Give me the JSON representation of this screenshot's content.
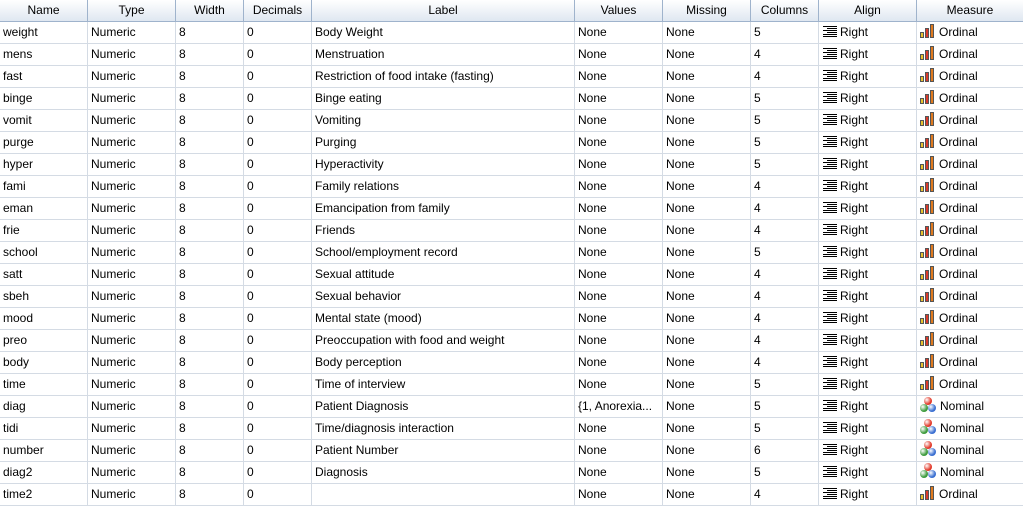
{
  "headers": {
    "name": "Name",
    "type": "Type",
    "width": "Width",
    "decimals": "Decimals",
    "label": "Label",
    "values": "Values",
    "missing": "Missing",
    "columns": "Columns",
    "align": "Align",
    "measure": "Measure"
  },
  "icons": {
    "align": "align-right-icon",
    "ordinal": "ordinal-bars-icon",
    "nominal": "nominal-circles-icon"
  },
  "colors": {
    "header_border": "#9fb3cc",
    "ordinal_bars": [
      "#e8c12c",
      "#d93a2b",
      "#e07a1f"
    ],
    "nominal_circles": [
      "#e23a2a",
      "#3c9a3c",
      "#3a6fd1"
    ]
  },
  "rows": [
    {
      "name": "weight",
      "type": "Numeric",
      "width": "8",
      "decimals": "0",
      "label": "Body Weight",
      "values": "None",
      "missing": "None",
      "columns": "5",
      "align": "Right",
      "measure": "Ordinal"
    },
    {
      "name": "mens",
      "type": "Numeric",
      "width": "8",
      "decimals": "0",
      "label": "Menstruation",
      "values": "None",
      "missing": "None",
      "columns": "4",
      "align": "Right",
      "measure": "Ordinal"
    },
    {
      "name": "fast",
      "type": "Numeric",
      "width": "8",
      "decimals": "0",
      "label": "Restriction of food intake (fasting)",
      "values": "None",
      "missing": "None",
      "columns": "4",
      "align": "Right",
      "measure": "Ordinal"
    },
    {
      "name": "binge",
      "type": "Numeric",
      "width": "8",
      "decimals": "0",
      "label": "Binge eating",
      "values": "None",
      "missing": "None",
      "columns": "5",
      "align": "Right",
      "measure": "Ordinal"
    },
    {
      "name": "vomit",
      "type": "Numeric",
      "width": "8",
      "decimals": "0",
      "label": "Vomiting",
      "values": "None",
      "missing": "None",
      "columns": "5",
      "align": "Right",
      "measure": "Ordinal"
    },
    {
      "name": "purge",
      "type": "Numeric",
      "width": "8",
      "decimals": "0",
      "label": "Purging",
      "values": "None",
      "missing": "None",
      "columns": "5",
      "align": "Right",
      "measure": "Ordinal"
    },
    {
      "name": "hyper",
      "type": "Numeric",
      "width": "8",
      "decimals": "0",
      "label": "Hyperactivity",
      "values": "None",
      "missing": "None",
      "columns": "5",
      "align": "Right",
      "measure": "Ordinal"
    },
    {
      "name": "fami",
      "type": "Numeric",
      "width": "8",
      "decimals": "0",
      "label": "Family relations",
      "values": "None",
      "missing": "None",
      "columns": "4",
      "align": "Right",
      "measure": "Ordinal"
    },
    {
      "name": "eman",
      "type": "Numeric",
      "width": "8",
      "decimals": "0",
      "label": "Emancipation from family",
      "values": "None",
      "missing": "None",
      "columns": "4",
      "align": "Right",
      "measure": "Ordinal"
    },
    {
      "name": "frie",
      "type": "Numeric",
      "width": "8",
      "decimals": "0",
      "label": "Friends",
      "values": "None",
      "missing": "None",
      "columns": "4",
      "align": "Right",
      "measure": "Ordinal"
    },
    {
      "name": "school",
      "type": "Numeric",
      "width": "8",
      "decimals": "0",
      "label": "School/employment record",
      "values": "None",
      "missing": "None",
      "columns": "5",
      "align": "Right",
      "measure": "Ordinal"
    },
    {
      "name": "satt",
      "type": "Numeric",
      "width": "8",
      "decimals": "0",
      "label": "Sexual attitude",
      "values": "None",
      "missing": "None",
      "columns": "4",
      "align": "Right",
      "measure": "Ordinal"
    },
    {
      "name": "sbeh",
      "type": "Numeric",
      "width": "8",
      "decimals": "0",
      "label": "Sexual behavior",
      "values": "None",
      "missing": "None",
      "columns": "4",
      "align": "Right",
      "measure": "Ordinal"
    },
    {
      "name": "mood",
      "type": "Numeric",
      "width": "8",
      "decimals": "0",
      "label": "Mental state (mood)",
      "values": "None",
      "missing": "None",
      "columns": "4",
      "align": "Right",
      "measure": "Ordinal"
    },
    {
      "name": "preo",
      "type": "Numeric",
      "width": "8",
      "decimals": "0",
      "label": "Preoccupation with food and weight",
      "values": "None",
      "missing": "None",
      "columns": "4",
      "align": "Right",
      "measure": "Ordinal"
    },
    {
      "name": "body",
      "type": "Numeric",
      "width": "8",
      "decimals": "0",
      "label": "Body perception",
      "values": "None",
      "missing": "None",
      "columns": "4",
      "align": "Right",
      "measure": "Ordinal"
    },
    {
      "name": "time",
      "type": "Numeric",
      "width": "8",
      "decimals": "0",
      "label": "Time of interview",
      "values": "None",
      "missing": "None",
      "columns": "5",
      "align": "Right",
      "measure": "Ordinal"
    },
    {
      "name": "diag",
      "type": "Numeric",
      "width": "8",
      "decimals": "0",
      "label": "Patient Diagnosis",
      "values": "{1, Anorexia...",
      "missing": "None",
      "columns": "5",
      "align": "Right",
      "measure": "Nominal"
    },
    {
      "name": "tidi",
      "type": "Numeric",
      "width": "8",
      "decimals": "0",
      "label": "Time/diagnosis interaction",
      "values": "None",
      "missing": "None",
      "columns": "5",
      "align": "Right",
      "measure": "Nominal"
    },
    {
      "name": "number",
      "type": "Numeric",
      "width": "8",
      "decimals": "0",
      "label": "Patient Number",
      "values": "None",
      "missing": "None",
      "columns": "6",
      "align": "Right",
      "measure": "Nominal"
    },
    {
      "name": "diag2",
      "type": "Numeric",
      "width": "8",
      "decimals": "0",
      "label": "Diagnosis",
      "values": "None",
      "missing": "None",
      "columns": "5",
      "align": "Right",
      "measure": "Nominal"
    },
    {
      "name": "time2",
      "type": "Numeric",
      "width": "8",
      "decimals": "0",
      "label": "",
      "values": "None",
      "missing": "None",
      "columns": "4",
      "align": "Right",
      "measure": "Ordinal"
    }
  ]
}
